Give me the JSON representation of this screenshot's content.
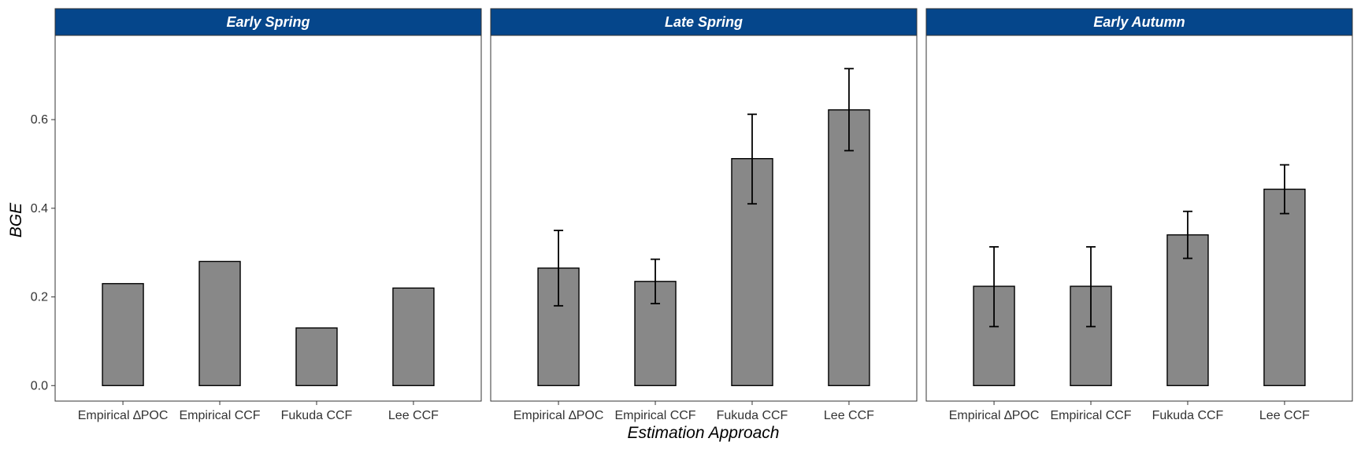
{
  "chart_data": {
    "type": "bar",
    "xlabel": "Estimation Approach",
    "ylabel": "BGE",
    "ylim": [
      -0.035,
      0.79
    ],
    "yticks": [
      "0.0",
      "0.2",
      "0.4",
      "0.6"
    ],
    "categories": [
      "Empirical ∆POC",
      "Empirical CCF",
      "Fukuda CCF",
      "Lee CCF"
    ],
    "colors": {
      "bar": "#888888",
      "strip": "#05468B",
      "bar_border": "#000000"
    },
    "panels": [
      {
        "title": "Early Spring",
        "values": [
          0.23,
          0.28,
          0.13,
          0.22
        ],
        "err_low": [
          null,
          null,
          null,
          null
        ],
        "err_high": [
          null,
          null,
          null,
          null
        ]
      },
      {
        "title": "Late Spring",
        "values": [
          0.265,
          0.235,
          0.512,
          0.622
        ],
        "err_low": [
          0.18,
          0.185,
          0.41,
          0.53
        ],
        "err_high": [
          0.35,
          0.285,
          0.612,
          0.715
        ]
      },
      {
        "title": "Early Autumn",
        "values": [
          0.224,
          0.224,
          0.34,
          0.443
        ],
        "err_low": [
          0.133,
          0.133,
          0.287,
          0.388
        ],
        "err_high": [
          0.313,
          0.313,
          0.393,
          0.498
        ]
      }
    ]
  }
}
